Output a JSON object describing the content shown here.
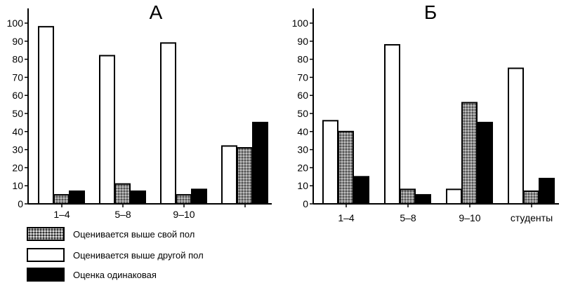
{
  "colors": {
    "own": "#8c8c8c",
    "other": "#ffffff",
    "same": "#000000",
    "axis": "#000000"
  },
  "legend": [
    {
      "key": "own",
      "label": "Оценивается выше свой пол"
    },
    {
      "key": "other",
      "label": "Оценивается выше другой пол"
    },
    {
      "key": "same",
      "label": "Оценка одинаковая"
    }
  ],
  "chart_data": [
    {
      "type": "bar",
      "title": "А",
      "xlabel": "",
      "ylabel": "",
      "ylim": [
        0,
        100
      ],
      "yticks": [
        0,
        10,
        20,
        30,
        40,
        50,
        60,
        70,
        80,
        90,
        100
      ],
      "categories": [
        "1–4",
        "5–8",
        "9–10",
        ""
      ],
      "series": [
        {
          "key": "other",
          "name": "Оценивается выше другой пол",
          "values": [
            98,
            82,
            89,
            32
          ]
        },
        {
          "key": "own",
          "name": "Оценивается выше свой пол",
          "values": [
            5,
            11,
            5,
            31
          ]
        },
        {
          "key": "same",
          "name": "Оценка одинаковая",
          "values": [
            7,
            7,
            8,
            45
          ]
        }
      ],
      "grid": false,
      "legend": "bottom-left"
    },
    {
      "type": "bar",
      "title": "Б",
      "xlabel": "",
      "ylabel": "",
      "ylim": [
        0,
        100
      ],
      "yticks": [
        0,
        10,
        20,
        30,
        40,
        50,
        60,
        70,
        80,
        90,
        100
      ],
      "categories": [
        "1–4",
        "5–8",
        "9–10",
        "студенты"
      ],
      "series": [
        {
          "key": "other",
          "name": "Оценивается выше другой пол",
          "values": [
            46,
            88,
            8,
            75
          ]
        },
        {
          "key": "own",
          "name": "Оценивается выше свой пол",
          "values": [
            40,
            8,
            56,
            7
          ]
        },
        {
          "key": "same",
          "name": "Оценка одинаковая",
          "values": [
            15,
            5,
            45,
            14
          ]
        }
      ],
      "grid": false,
      "legend": "bottom-left"
    }
  ]
}
